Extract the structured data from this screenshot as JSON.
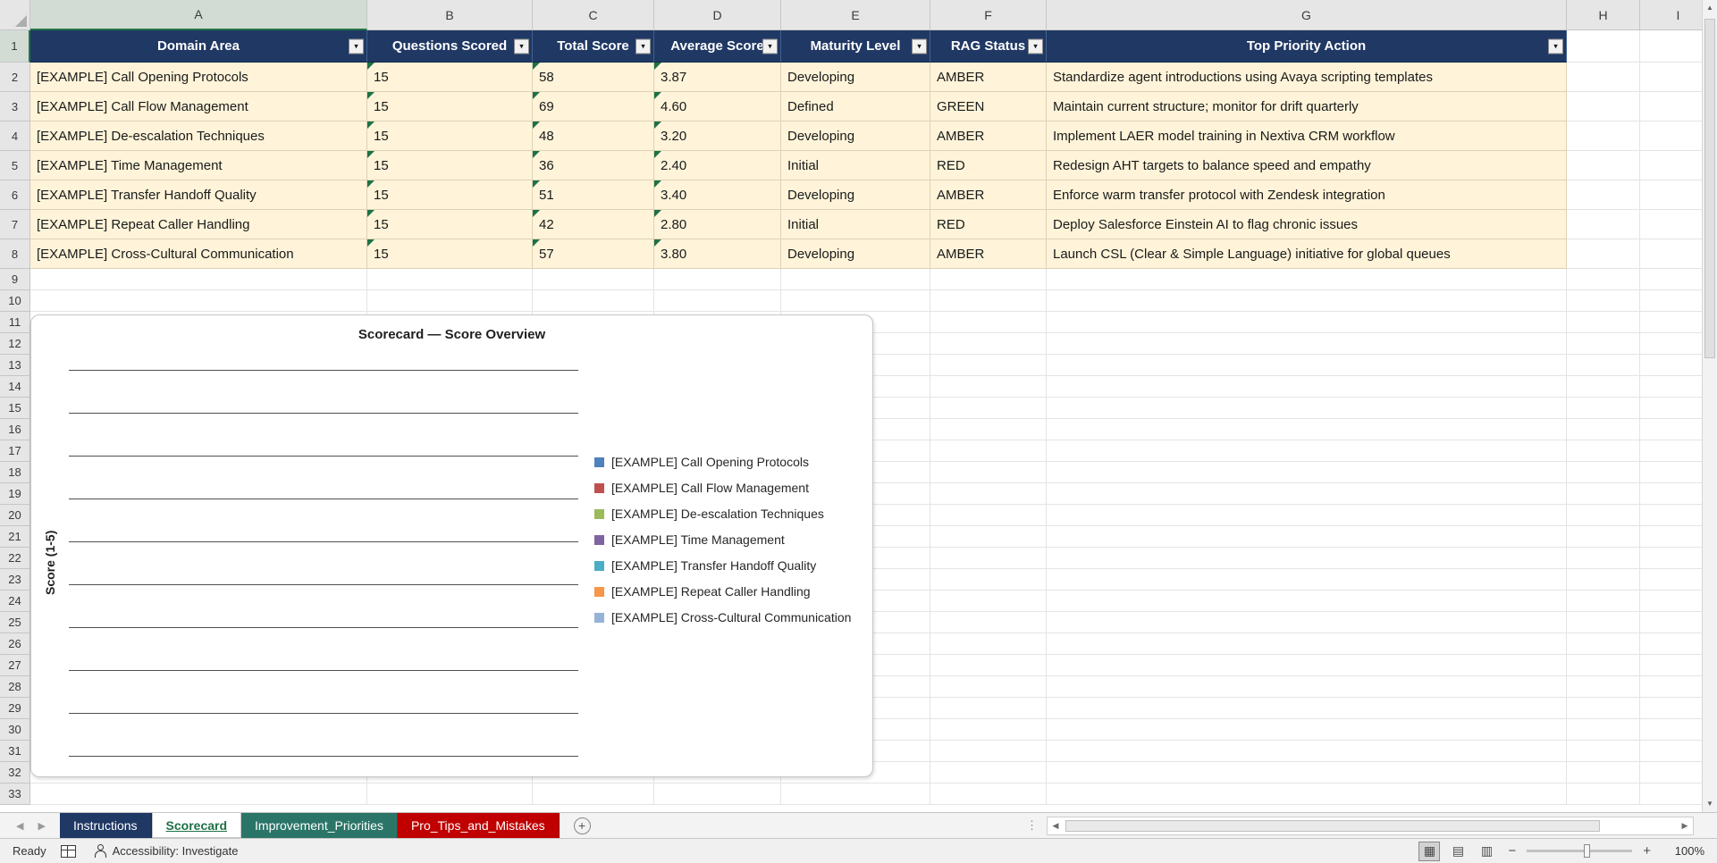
{
  "theme": {
    "header_bg": "#203864",
    "band_bg": "#FFF4D9",
    "accent_green": "#217346"
  },
  "grid": {
    "columns": [
      "A",
      "B",
      "C",
      "D",
      "E",
      "F",
      "G",
      "H",
      "I"
    ],
    "first_row": 1,
    "last_row": 33
  },
  "table": {
    "headers": [
      "Domain Area",
      "Questions Scored",
      "Total Score",
      "Average Score",
      "Maturity Level",
      "RAG Status",
      "Top Priority Action"
    ],
    "rows": [
      [
        "[EXAMPLE] Call Opening Protocols",
        "15",
        "58",
        "3.87",
        "Developing",
        "AMBER",
        "Standardize agent introductions using Avaya scripting templates"
      ],
      [
        "[EXAMPLE] Call Flow Management",
        "15",
        "69",
        "4.60",
        "Defined",
        "GREEN",
        "Maintain current structure; monitor for drift quarterly"
      ],
      [
        "[EXAMPLE] De-escalation Techniques",
        "15",
        "48",
        "3.20",
        "Developing",
        "AMBER",
        "Implement LAER model training in Nextiva CRM workflow"
      ],
      [
        "[EXAMPLE] Time Management",
        "15",
        "36",
        "2.40",
        "Initial",
        "RED",
        "Redesign AHT targets to balance speed and empathy"
      ],
      [
        "[EXAMPLE] Transfer Handoff Quality",
        "15",
        "51",
        "3.40",
        "Developing",
        "AMBER",
        "Enforce warm transfer protocol with Zendesk integration"
      ],
      [
        "[EXAMPLE] Repeat Caller Handling",
        "15",
        "42",
        "2.80",
        "Initial",
        "RED",
        "Deploy Salesforce Einstein AI to flag chronic issues"
      ],
      [
        "[EXAMPLE] Cross-Cultural Communication",
        "15",
        "57",
        "3.80",
        "Developing",
        "AMBER",
        "Launch CSL (Clear & Simple Language) initiative for global queues"
      ]
    ]
  },
  "chart": {
    "title": "Scorecard — Score Overview",
    "y_axis_label": "Score (1-5)",
    "gridline_count": 10,
    "legend": [
      {
        "label": "[EXAMPLE] Call Opening Protocols",
        "color": "#4F81BD"
      },
      {
        "label": "[EXAMPLE] Call Flow Management",
        "color": "#C0504D"
      },
      {
        "label": "[EXAMPLE] De-escalation Techniques",
        "color": "#9BBB59"
      },
      {
        "label": "[EXAMPLE] Time Management",
        "color": "#8064A2"
      },
      {
        "label": "[EXAMPLE] Transfer Handoff Quality",
        "color": "#4BACC6"
      },
      {
        "label": "[EXAMPLE] Repeat Caller Handling",
        "color": "#F79646"
      },
      {
        "label": "[EXAMPLE] Cross-Cultural Communication",
        "color": "#95B3D7"
      }
    ]
  },
  "tabs": [
    {
      "label": "Instructions",
      "color": "#1F3864",
      "text_color": "#FFFFFF",
      "active": false
    },
    {
      "label": "Scorecard",
      "color": "#FFFFFF",
      "text_color": "#1E7145",
      "active": true
    },
    {
      "label": "Improvement_Priorities",
      "color": "#2A7568",
      "text_color": "#FFFFFF",
      "active": false
    },
    {
      "label": "Pro_Tips_and_Mistakes",
      "color": "#C00000",
      "text_color": "#FFFFFF",
      "active": false
    }
  ],
  "status_bar": {
    "ready_label": "Ready",
    "accessibility_label": "Accessibility: Investigate",
    "zoom_level": "100%"
  }
}
